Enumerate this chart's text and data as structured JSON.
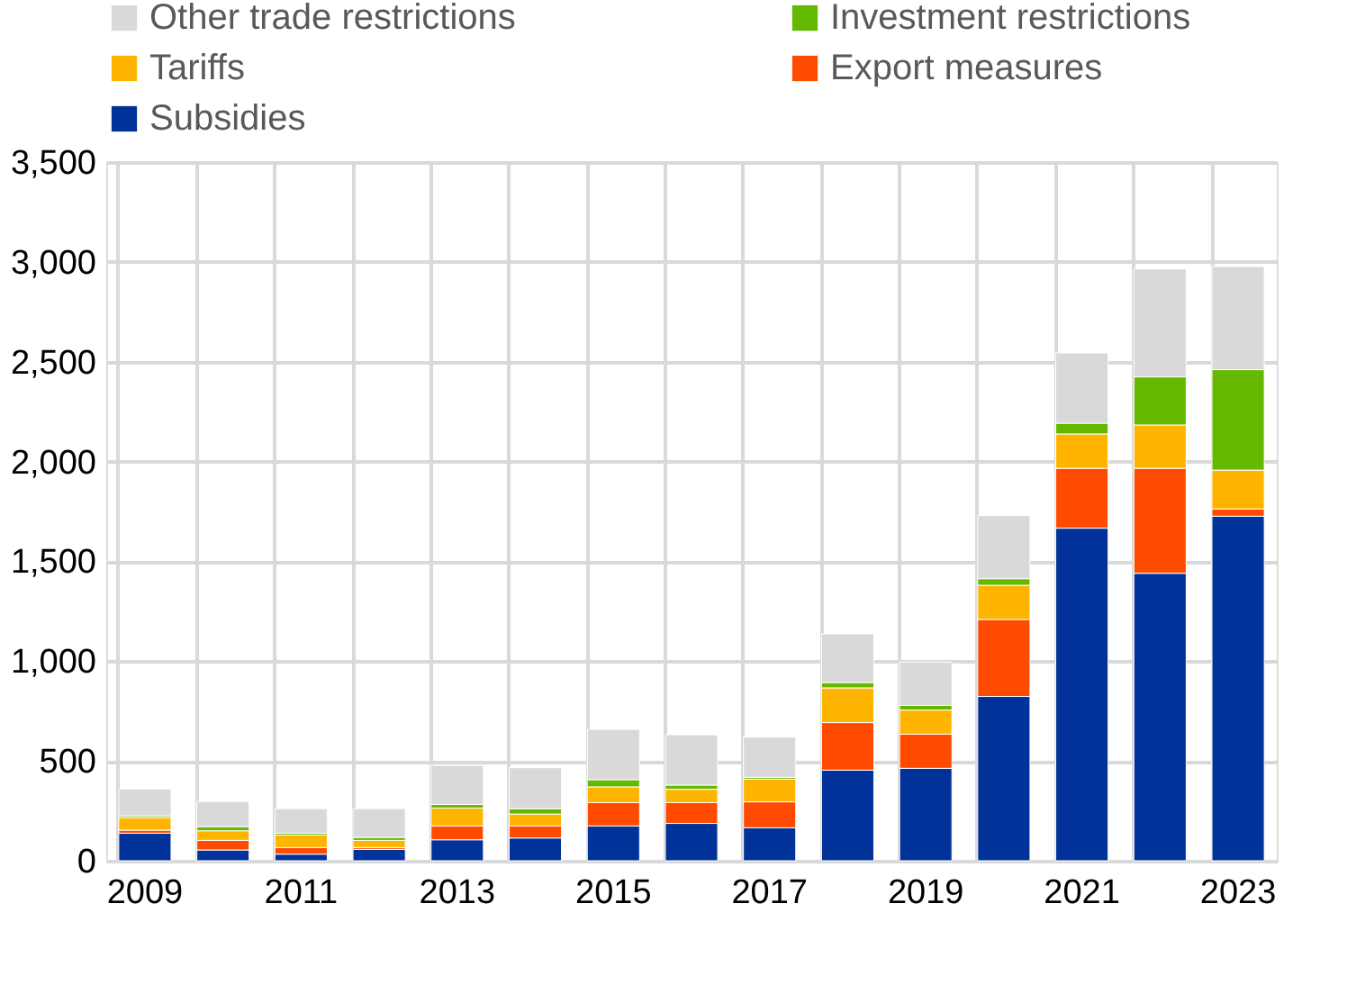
{
  "chart_data": {
    "type": "bar",
    "stacked": true,
    "categories": [
      "2009",
      null,
      "2011",
      null,
      "2013",
      null,
      "2015",
      null,
      "2017",
      null,
      "2019",
      null,
      "2021",
      null,
      "2023"
    ],
    "series": [
      {
        "name": "Subsidies",
        "color": "#003299",
        "values": [
          138,
          54,
          33,
          57,
          105,
          114,
          174,
          187,
          165,
          454,
          463,
          823,
          1666,
          1440,
          1726
        ]
      },
      {
        "name": "Export measures",
        "color": "#ff4b00",
        "values": [
          15,
          48,
          33,
          9,
          69,
          60,
          117,
          104,
          130,
          238,
          171,
          386,
          300,
          526,
          36
        ]
      },
      {
        "name": "Tariffs",
        "color": "#ffb400",
        "values": [
          63,
          48,
          63,
          36,
          90,
          60,
          79,
          67,
          114,
          174,
          121,
          171,
          172,
          217,
          195
        ]
      },
      {
        "name": "Investment restrictions",
        "color": "#65b800",
        "values": [
          9,
          21,
          9,
          15,
          18,
          27,
          36,
          21,
          9,
          27,
          23,
          33,
          54,
          241,
          503
        ]
      },
      {
        "name": "Other trade restrictions",
        "color": "#d9d9d9",
        "values": [
          135,
          126,
          123,
          144,
          196,
          205,
          252,
          252,
          201,
          244,
          217,
          316,
          352,
          541,
          517
        ]
      }
    ],
    "ylim": [
      0,
      3500
    ],
    "yticks": [
      0,
      {
        "value": 500,
        "label": "500"
      },
      {
        "value": 1000,
        "label": "1,000"
      },
      {
        "value": 1500,
        "label": "1,500"
      },
      {
        "value": 2000,
        "label": "2,000"
      },
      {
        "value": 2500,
        "label": "2,500"
      },
      {
        "value": 3000,
        "label": "3,000"
      },
      {
        "value": 3500,
        "label": "3,500"
      }
    ],
    "grid": true,
    "legend": "top"
  }
}
